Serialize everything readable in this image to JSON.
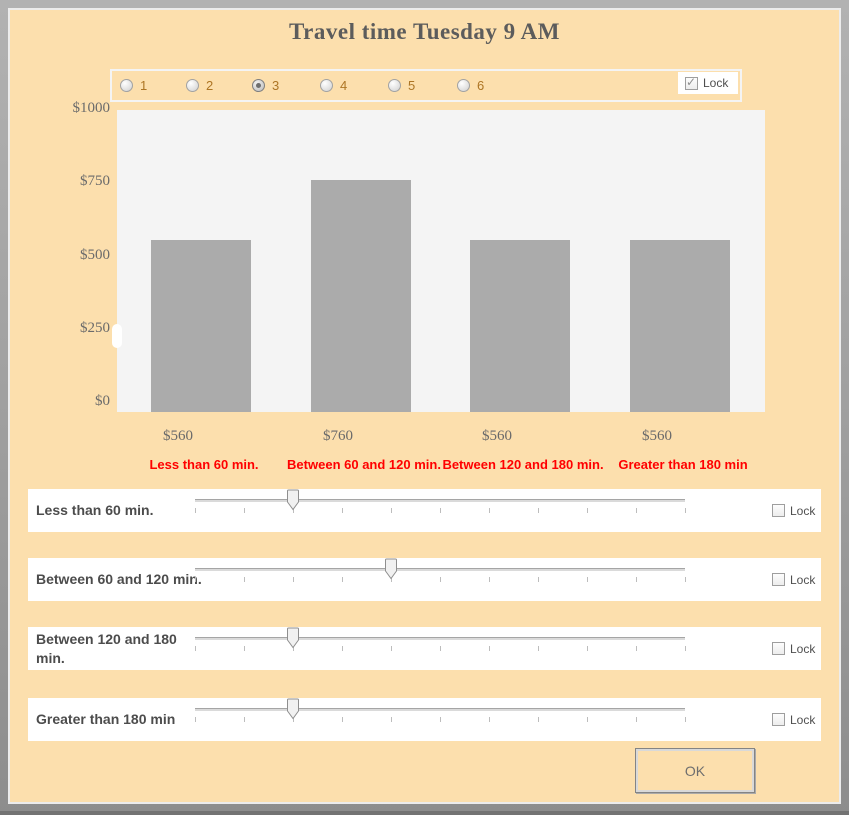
{
  "window": {
    "title": "Travel time Tuesday 9 AM"
  },
  "profile_selector": {
    "options": [
      {
        "label": "1",
        "selected": false
      },
      {
        "label": "2",
        "selected": false
      },
      {
        "label": "3",
        "selected": true
      },
      {
        "label": "4",
        "selected": false
      },
      {
        "label": "5",
        "selected": false
      },
      {
        "label": "6",
        "selected": false
      }
    ],
    "lock": {
      "label": "Lock",
      "checked": true
    }
  },
  "chart_data": {
    "type": "bar",
    "title": "Travel time Tuesday 9 AM",
    "categories": [
      "Less than 60 min.",
      "Between 60 and 120 min.",
      "Between 120 and 180 min.",
      "Greater than 180 min"
    ],
    "values": [
      560,
      760,
      560,
      560
    ],
    "value_labels": [
      "$560",
      "$760",
      "$560",
      "$560"
    ],
    "xlabel": "",
    "ylabel": "",
    "ylim": [
      0,
      1000
    ],
    "y_tick_labels": [
      "$1000",
      "$750",
      "$500",
      "$250",
      "$0"
    ],
    "grid": false,
    "legend": false
  },
  "sliders": [
    {
      "label": "Less than 60 min.",
      "value": 2,
      "min": 0,
      "max": 10,
      "lock": {
        "label": "Lock",
        "checked": false
      }
    },
    {
      "label": "Between 60 and 120 min.",
      "value": 4,
      "min": 0,
      "max": 10,
      "lock": {
        "label": "Lock",
        "checked": false
      }
    },
    {
      "label": "Between 120 and 180 min.",
      "value": 2,
      "min": 0,
      "max": 10,
      "lock": {
        "label": "Lock",
        "checked": false
      }
    },
    {
      "label": "Greater than 180 min",
      "value": 2,
      "min": 0,
      "max": 10,
      "lock": {
        "label": "Lock",
        "checked": false
      }
    }
  ],
  "ok_button": {
    "label": "OK"
  },
  "colors": {
    "background": "#fcdfad",
    "frame": "#8d8d8d",
    "plot_background": "#f4f4f4",
    "bar": "#ababab",
    "category_label": "#ff0000",
    "title_text": "#5c5c5c",
    "radio_label": "#ad7524"
  }
}
